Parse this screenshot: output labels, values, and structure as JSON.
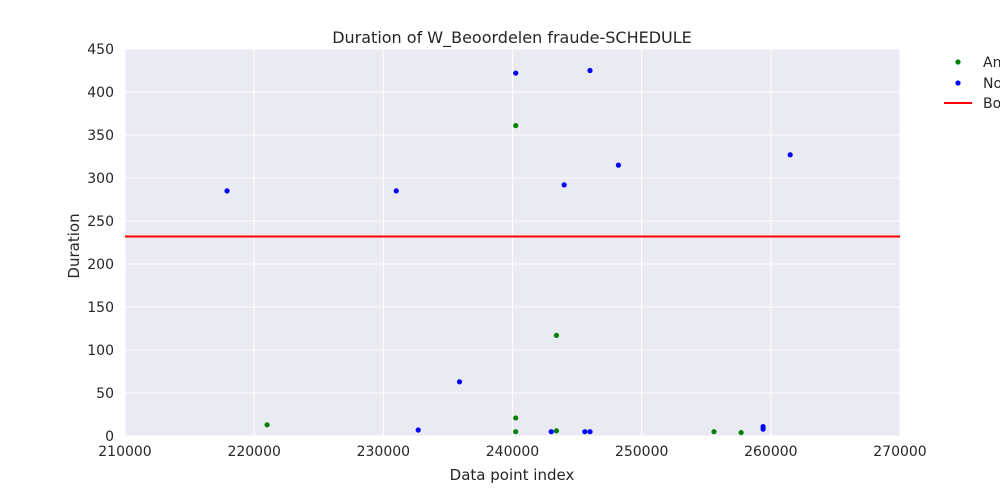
{
  "chart_data": {
    "type": "scatter",
    "title": "Duration of W_Beoordelen fraude-SCHEDULE",
    "xlabel": "Data point index",
    "ylabel": "Duration",
    "xlim": [
      210000,
      270000
    ],
    "ylim": [
      0,
      450
    ],
    "xticks": [
      "210000",
      "220000",
      "230000",
      "240000",
      "250000",
      "260000",
      "270000"
    ],
    "yticks": [
      "0",
      "50",
      "100",
      "150",
      "200",
      "250",
      "300",
      "350",
      "400",
      "450"
    ],
    "grid": true,
    "legend_placement": "outside top-right",
    "threshold": {
      "name": "Bo",
      "value": 232,
      "color": "#ff0000"
    },
    "series": [
      {
        "name": "An",
        "color": "#008000",
        "points": [
          [
            221000,
            13
          ],
          [
            240250,
            361
          ],
          [
            240250,
            21
          ],
          [
            240250,
            5
          ],
          [
            243400,
            117
          ],
          [
            243400,
            6
          ],
          [
            255600,
            5
          ],
          [
            257700,
            4
          ]
        ]
      },
      {
        "name": "No",
        "color": "#0000ff",
        "points": [
          [
            217900,
            285
          ],
          [
            231000,
            285
          ],
          [
            232700,
            7
          ],
          [
            235900,
            63
          ],
          [
            240250,
            422
          ],
          [
            243000,
            5
          ],
          [
            244000,
            292
          ],
          [
            245600,
            5
          ],
          [
            246000,
            425
          ],
          [
            246000,
            5
          ],
          [
            248200,
            315
          ],
          [
            259400,
            11
          ],
          [
            259400,
            8
          ],
          [
            261500,
            327
          ]
        ]
      }
    ]
  }
}
